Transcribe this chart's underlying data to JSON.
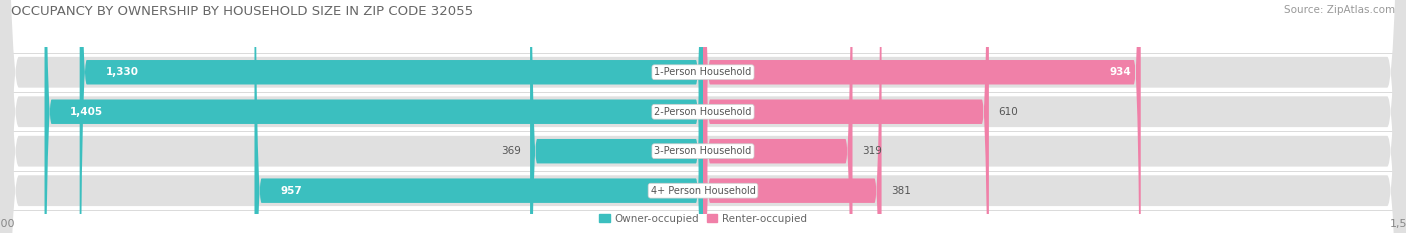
{
  "title": "OCCUPANCY BY OWNERSHIP BY HOUSEHOLD SIZE IN ZIP CODE 32055",
  "source": "Source: ZipAtlas.com",
  "categories": [
    "1-Person Household",
    "2-Person Household",
    "3-Person Household",
    "4+ Person Household"
  ],
  "owner_values": [
    1330,
    1405,
    369,
    957
  ],
  "renter_values": [
    934,
    610,
    319,
    381
  ],
  "owner_color": "#3bbfbf",
  "renter_color": "#f080a8",
  "row_bg_color": "#e0e0e0",
  "owner_label": "Owner-occupied",
  "renter_label": "Renter-occupied",
  "axis_max": 1500,
  "background_color": "#ffffff",
  "title_fontsize": 9.5,
  "source_fontsize": 7.5,
  "bar_label_fontsize": 7.5,
  "category_fontsize": 7.0,
  "axis_label_fontsize": 8.0
}
